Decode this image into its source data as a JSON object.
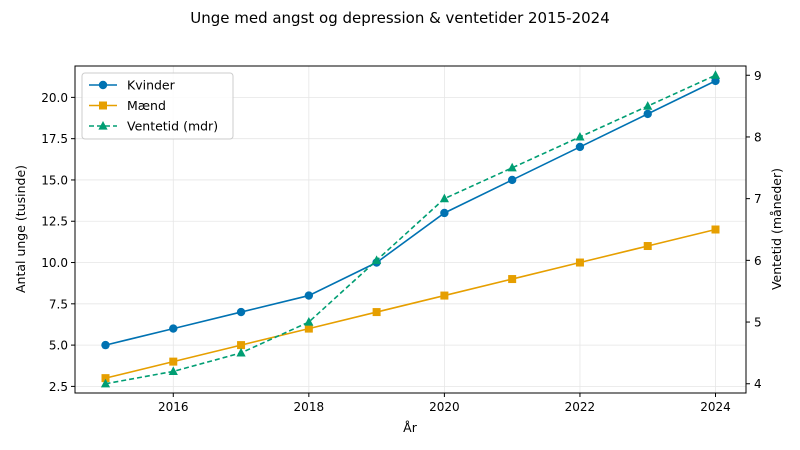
{
  "chart_data": {
    "type": "line",
    "title": "Unge med angst og depression & ventetider 2015-2024",
    "xlabel": "År",
    "ylabel": "Antal unge (tusinde)",
    "y2label": "Ventetid (måneder)",
    "x": [
      2015,
      2016,
      2017,
      2018,
      2019,
      2020,
      2021,
      2022,
      2023,
      2024
    ],
    "xticks": [
      "2016",
      "2018",
      "2020",
      "2022",
      "2024"
    ],
    "xlim": [
      2014.55,
      2024.45
    ],
    "ylim": [
      2.1,
      21.9
    ],
    "y2lim": [
      3.85,
      9.15
    ],
    "yticks": [
      "2.5",
      "5.0",
      "7.5",
      "10.0",
      "12.5",
      "15.0",
      "17.5",
      "20.0"
    ],
    "y2ticks": [
      "4",
      "5",
      "6",
      "7",
      "8",
      "9"
    ],
    "grid": true,
    "legend_position": "top-left",
    "series": [
      {
        "name": "Kvinder",
        "axis": "left",
        "color": "#0072b2",
        "marker": "circle",
        "dash": "solid",
        "values": [
          5,
          6,
          7,
          8,
          10,
          13,
          15,
          17,
          19,
          21
        ]
      },
      {
        "name": "Mænd",
        "axis": "left",
        "color": "#e69f00",
        "marker": "square",
        "dash": "solid",
        "values": [
          3,
          4,
          5,
          6,
          7,
          8,
          9,
          10,
          11,
          12
        ]
      },
      {
        "name": "Ventetid (mdr)",
        "axis": "right",
        "color": "#009e73",
        "marker": "triangle",
        "dash": "dashed",
        "values": [
          4,
          4.2,
          4.5,
          5,
          6,
          7,
          7.5,
          8,
          8.5,
          9
        ]
      }
    ]
  }
}
